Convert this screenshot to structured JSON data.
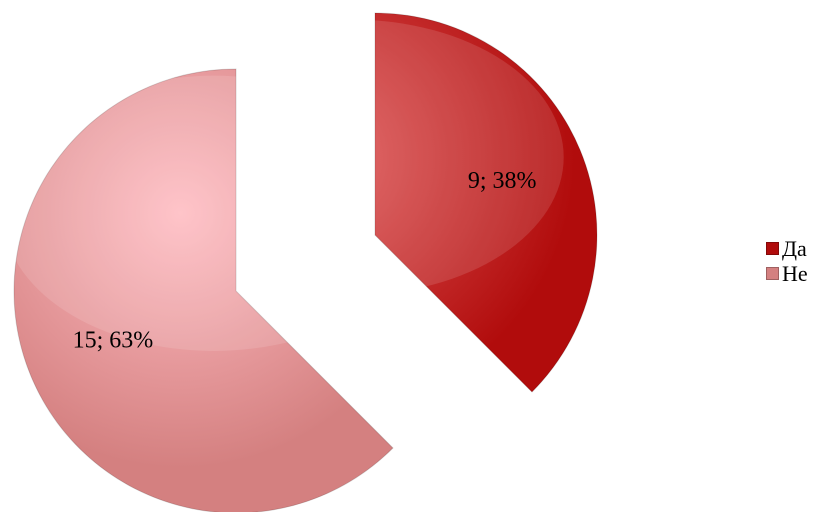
{
  "chart_data": {
    "type": "pie",
    "title": "",
    "categories": [
      "Да",
      "Не"
    ],
    "values": [
      9,
      15
    ],
    "labels": [
      "9; 38%",
      "15; 63%"
    ],
    "exploded": true,
    "legend_position": "right",
    "colors": [
      "#b10c0c",
      "#d48080"
    ],
    "highlight_colors": [
      "#e05a5a",
      "#ffbcc2"
    ]
  },
  "legend": [
    {
      "label": "Да",
      "color": "#b10c0c"
    },
    {
      "label": "Не",
      "color": "#d48080"
    }
  ]
}
